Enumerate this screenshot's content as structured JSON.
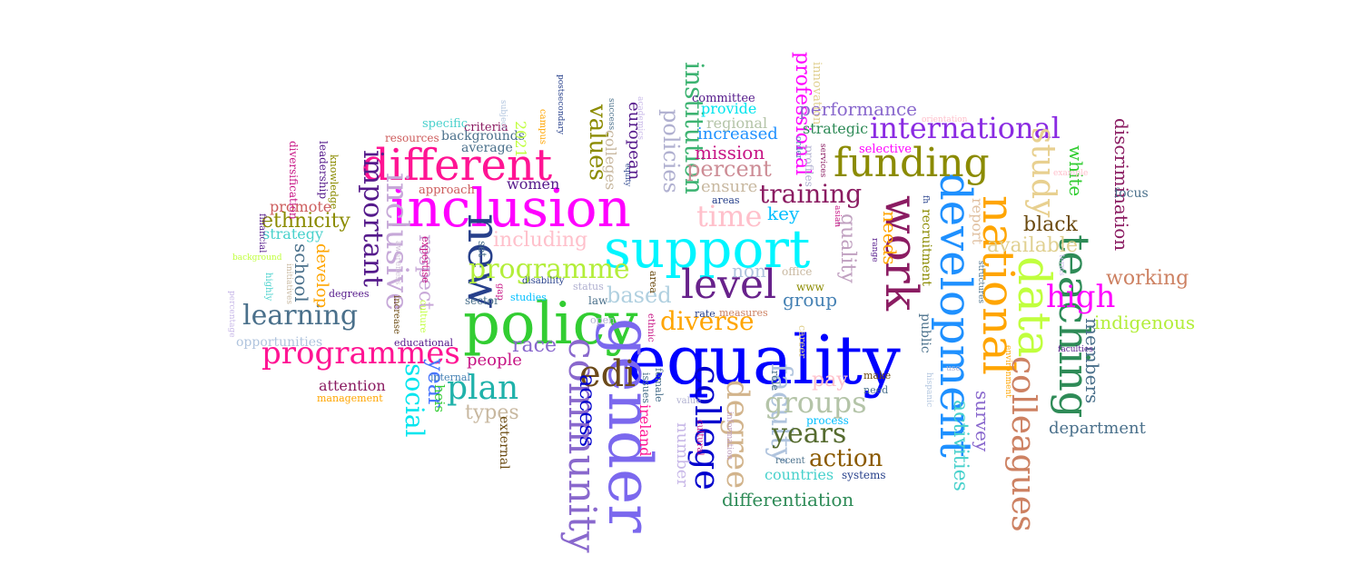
{
  "words": [
    {
      "text": "equality",
      "color": "#0000ff"
    },
    {
      "text": "support",
      "color": "#00f5ff"
    },
    {
      "text": "policy",
      "color": "#32cd32"
    },
    {
      "text": "inclusion",
      "color": "#ff00ff"
    },
    {
      "text": "gender",
      "color": "#7b68ee"
    },
    {
      "text": "different",
      "color": "#ff1493"
    },
    {
      "text": "development",
      "color": "#1e90ff"
    },
    {
      "text": "national",
      "color": "#ffa500"
    },
    {
      "text": "teaching",
      "color": "#2e8b57"
    },
    {
      "text": "data",
      "color": "#c0ff3e"
    },
    {
      "text": "work",
      "color": "#8b1c62"
    },
    {
      "text": "funding",
      "color": "#8b8b00"
    },
    {
      "text": "new",
      "color": "#27408b"
    },
    {
      "text": "level",
      "color": "#68228b"
    },
    {
      "text": "community",
      "color": "#8968cd"
    },
    {
      "text": "colleagues",
      "color": "#cd8162"
    },
    {
      "text": "international",
      "color": "#8a2be2"
    },
    {
      "text": "programme",
      "color": "#b3ee3a"
    },
    {
      "text": "programmes",
      "color": "#ff1493"
    },
    {
      "text": "inclusive",
      "color": "#c6a8d8"
    },
    {
      "text": "edi",
      "color": "#6b4a1a"
    },
    {
      "text": "college",
      "color": "#0000cd"
    },
    {
      "text": "degree",
      "color": "#d2b48c"
    },
    {
      "text": "faculty",
      "color": "#b0c4de"
    },
    {
      "text": "groups",
      "color": "#b4c4a8"
    },
    {
      "text": "plan",
      "color": "#20b2aa"
    },
    {
      "text": "study",
      "color": "#e8d090"
    },
    {
      "text": "time",
      "color": "#ffc0cb"
    },
    {
      "text": "high",
      "color": "#ff00ff"
    },
    {
      "text": "learning",
      "color": "#4a708b"
    },
    {
      "text": "important",
      "color": "#551a8b"
    },
    {
      "text": "diverse",
      "color": "#ffa500"
    },
    {
      "text": "years",
      "color": "#556b2f"
    },
    {
      "text": "action",
      "color": "#8b5a00"
    },
    {
      "text": "social",
      "color": "#00e5ee"
    },
    {
      "text": "training",
      "color": "#8b1c62"
    },
    {
      "text": "institution",
      "color": "#3cb371"
    },
    {
      "text": "values",
      "color": "#8b8b00"
    },
    {
      "text": "policies",
      "color": "#b0b0d0"
    },
    {
      "text": "percent",
      "color": "#cd8c95"
    },
    {
      "text": "access",
      "color": "#0000cd"
    },
    {
      "text": "year",
      "color": "#4876ff"
    },
    {
      "text": "quality",
      "color": "#c0a0c0"
    },
    {
      "text": "professional",
      "color": "#ff00ff"
    },
    {
      "text": "based",
      "color": "#b0d0e0"
    },
    {
      "text": "including",
      "color": "#ffc0cb"
    },
    {
      "text": "respect",
      "color": "#c8a8d8"
    },
    {
      "text": "race",
      "color": "#8968cd"
    },
    {
      "text": "types",
      "color": "#c8b8a0"
    },
    {
      "text": "people",
      "color": "#c71585"
    },
    {
      "text": "activities",
      "color": "#48d1cc"
    },
    {
      "text": "black",
      "color": "#6b4a10"
    },
    {
      "text": "available",
      "color": "#e0d090"
    },
    {
      "text": "white",
      "color": "#32cd32"
    },
    {
      "text": "discrimination",
      "color": "#8b1c62"
    },
    {
      "text": "working",
      "color": "#cd8162"
    },
    {
      "text": "indigenous",
      "color": "#b3ee3a"
    },
    {
      "text": "members",
      "color": "#4a708b"
    },
    {
      "text": "survey",
      "color": "#8968cd"
    },
    {
      "text": "department",
      "color": "#4a708b"
    },
    {
      "text": "differentiation",
      "color": "#2e8b57"
    },
    {
      "text": "countries",
      "color": "#48d1cc"
    },
    {
      "text": "performance",
      "color": "#8968cd"
    },
    {
      "text": "ethnicity",
      "color": "#8b8b00"
    },
    {
      "text": "school",
      "color": "#4a708b"
    },
    {
      "text": "mission",
      "color": "#c71585"
    },
    {
      "text": "increased",
      "color": "#1e90ff"
    },
    {
      "text": "women",
      "color": "#551a8b"
    },
    {
      "text": "key",
      "color": "#00bfff"
    },
    {
      "text": "group",
      "color": "#4682b4"
    },
    {
      "text": "pay",
      "color": "#ffc0cb"
    },
    {
      "text": "ensure",
      "color": "#c8b8a0"
    },
    {
      "text": "non",
      "color": "#b0c4de"
    },
    {
      "text": "number",
      "color": "#c8b8e8"
    },
    {
      "text": "ireland",
      "color": "#ff1493"
    },
    {
      "text": "colleges",
      "color": "#c8b8a0"
    },
    {
      "text": "european",
      "color": "#551a8b"
    },
    {
      "text": "needs",
      "color": "#ffa500"
    },
    {
      "text": "develop",
      "color": "#ffa500"
    },
    {
      "text": "promote",
      "color": "#cd5c5c"
    },
    {
      "text": "strategy",
      "color": "#48d1cc"
    },
    {
      "text": "attention",
      "color": "#8b1c62"
    },
    {
      "text": "heis",
      "color": "#32cd32"
    },
    {
      "text": "external",
      "color": "#6b4a10"
    },
    {
      "text": "recruitment",
      "color": "#8b8b00"
    },
    {
      "text": "public",
      "color": "#4a708b"
    },
    {
      "text": "report",
      "color": "#e0c0a0"
    },
    {
      "text": "strategic",
      "color": "#2e8b57"
    },
    {
      "text": "regional",
      "color": "#b4c4a8"
    },
    {
      "text": "provide",
      "color": "#00e5ee"
    },
    {
      "text": "committee",
      "color": "#551a8b"
    },
    {
      "text": "innovation",
      "color": "#e0d090"
    },
    {
      "text": "selective",
      "color": "#ff00ff"
    },
    {
      "text": "focus",
      "color": "#4a708b"
    },
    {
      "text": "backgrounds",
      "color": "#4a708b"
    },
    {
      "text": "average",
      "color": "#4a708b"
    },
    {
      "text": "criteria",
      "color": "#8b1c62"
    },
    {
      "text": "specific",
      "color": "#48d1cc"
    },
    {
      "text": "resources",
      "color": "#cd5c5c"
    },
    {
      "text": "approach",
      "color": "#cd5c5c"
    },
    {
      "text": "2021",
      "color": "#c0ff3e"
    },
    {
      "text": "leadership",
      "color": "#551a8b"
    },
    {
      "text": "knowledge",
      "color": "#8b8b00"
    },
    {
      "text": "diversification",
      "color": "#c71585"
    },
    {
      "text": "financial",
      "color": "#551a8b"
    },
    {
      "text": "background",
      "color": "#c0ff3e"
    },
    {
      "text": "opportunities",
      "color": "#b0c4de"
    },
    {
      "text": "percentage",
      "color": "#c8b8e8"
    },
    {
      "text": "highly",
      "color": "#48d1cc"
    },
    {
      "text": "initiatives",
      "color": "#c8b8a0"
    },
    {
      "text": "degrees",
      "color": "#551a8b"
    },
    {
      "text": "educational",
      "color": "#551a8b"
    },
    {
      "text": "management",
      "color": "#ffa500"
    },
    {
      "text": "internal",
      "color": "#4682b4"
    },
    {
      "text": "expertise",
      "color": "#c71585"
    },
    {
      "text": "awareness",
      "color": "#d0c0d8"
    },
    {
      "text": "increase",
      "color": "#6b4a10"
    },
    {
      "text": "culture",
      "color": "#c0ff3e"
    },
    {
      "text": "set",
      "color": "#4a708b"
    },
    {
      "text": "disability",
      "color": "#27408b"
    },
    {
      "text": "sector",
      "color": "#4a708b"
    },
    {
      "text": "gap",
      "color": "#c71585"
    },
    {
      "text": "studies",
      "color": "#00bfff"
    },
    {
      "text": "status",
      "color": "#b0b0d0"
    },
    {
      "text": "law",
      "color": "#4a708b"
    },
    {
      "text": "open",
      "color": "#b0b0d0"
    },
    {
      "text": "area",
      "color": "#6b4a10"
    },
    {
      "text": "ethnic",
      "color": "#c71585"
    },
    {
      "text": "rate",
      "color": "#27408b"
    },
    {
      "text": "measures",
      "color": "#cd8162"
    },
    {
      "text": "www",
      "color": "#8b8b00"
    },
    {
      "text": "office",
      "color": "#c8b8a0"
    },
    {
      "text": "process",
      "color": "#00bfff"
    },
    {
      "text": "career",
      "color": "#e0d090"
    },
    {
      "text": "role",
      "color": "#4a708b"
    },
    {
      "text": "recent",
      "color": "#4a708b"
    },
    {
      "text": "systems",
      "color": "#27408b"
    },
    {
      "text": "make",
      "color": "#6b4a10"
    },
    {
      "text": "need",
      "color": "#4a708b"
    },
    {
      "text": "information",
      "color": "#c0a0c0"
    },
    {
      "text": "value",
      "color": "#b0b0d0"
    },
    {
      "text": "cultural",
      "color": "#c71585"
    },
    {
      "text": "issues",
      "color": "#4a708b"
    },
    {
      "text": "female",
      "color": "#4a708b"
    },
    {
      "text": "subject",
      "color": "#b0c4de"
    },
    {
      "text": "campus",
      "color": "#ffa500"
    },
    {
      "text": "postsecondary",
      "color": "#27408b"
    },
    {
      "text": "success",
      "color": "#4a708b"
    },
    {
      "text": "academics",
      "color": "#c8b8e8"
    },
    {
      "text": "equity",
      "color": "#27408b"
    },
    {
      "text": "areas",
      "color": "#27408b"
    },
    {
      "text": "profiles",
      "color": "#b0b0d0"
    },
    {
      "text": "order",
      "color": "#4682b4"
    },
    {
      "text": "services",
      "color": "#8b1c62"
    },
    {
      "text": "asian",
      "color": "#c71585"
    },
    {
      "text": "range",
      "color": "#551a8b"
    },
    {
      "text": "fh",
      "color": "#27408b"
    },
    {
      "text": "structures",
      "color": "#4a708b"
    },
    {
      "text": "orientation",
      "color": "#ffc0cb"
    },
    {
      "text": "example",
      "color": "#ffc0cb"
    },
    {
      "text": "terms",
      "color": "#c8b8e8"
    },
    {
      "text": "environment",
      "color": "#ffa500"
    },
    {
      "text": "use",
      "color": "#b0b0d0"
    },
    {
      "text": "hispanic",
      "color": "#b0c4de"
    },
    {
      "text": "faculties",
      "color": "#551a8b"
    }
  ]
}
